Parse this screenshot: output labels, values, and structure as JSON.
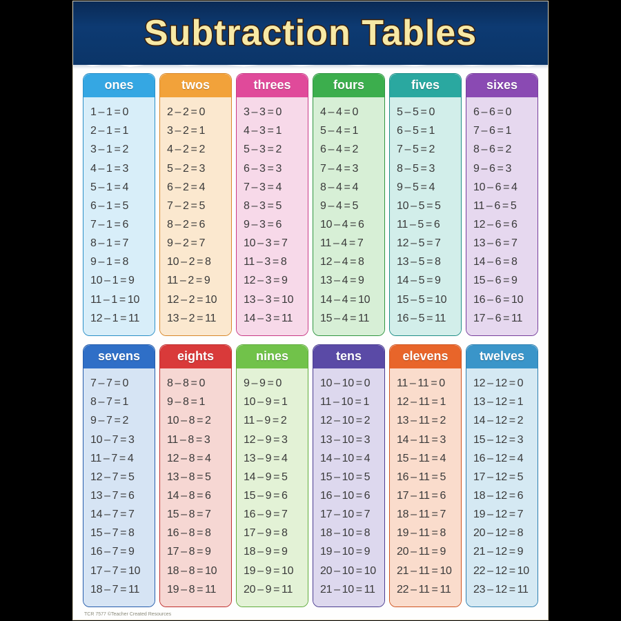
{
  "title": "Subtraction Tables",
  "footer": "TCR 7577    ©Teacher Created Resources",
  "layout": {
    "poster_width": 690,
    "poster_height": 898,
    "columns": 6,
    "rows": 2,
    "banner_height": 92,
    "title_fontsize": 52,
    "header_fontsize": 18,
    "row_fontsize": 16,
    "border_radius": 10,
    "grid_gap_h": 6,
    "grid_gap_v": 12
  },
  "colors": {
    "page_bg": "#000000",
    "poster_bg": "#fefefe",
    "banner_bg_top": "#0a2a55",
    "banner_bg_bottom": "#0b3568",
    "title_fill": "#f7e9a6",
    "title_stroke": "#3a1f0a",
    "row_text": "#3a3a3a"
  },
  "tables": [
    {
      "id": "ones",
      "label": "ones",
      "header_bg": "#35a7e3",
      "body_bg": "#d8eef9",
      "border": "#2a8fc7",
      "start": 1,
      "sub": 1
    },
    {
      "id": "twos",
      "label": "twos",
      "header_bg": "#f2a23a",
      "body_bg": "#fbe8cf",
      "border": "#d8882a",
      "start": 2,
      "sub": 2
    },
    {
      "id": "threes",
      "label": "threes",
      "header_bg": "#e04a9a",
      "body_bg": "#f7d9e9",
      "border": "#c83a86",
      "start": 3,
      "sub": 3
    },
    {
      "id": "fours",
      "label": "fours",
      "header_bg": "#3cae4d",
      "body_bg": "#d7efd6",
      "border": "#2f9540",
      "start": 4,
      "sub": 4
    },
    {
      "id": "fives",
      "label": "fives",
      "header_bg": "#2aa8a0",
      "body_bg": "#d2eeea",
      "border": "#1f8e86",
      "start": 5,
      "sub": 5
    },
    {
      "id": "sixes",
      "label": "sixes",
      "header_bg": "#8a4ab3",
      "body_bg": "#e6d8ef",
      "border": "#763d9c",
      "start": 6,
      "sub": 6
    },
    {
      "id": "sevens",
      "label": "sevens",
      "header_bg": "#2f6fc7",
      "body_bg": "#d6e4f4",
      "border": "#245cab",
      "start": 7,
      "sub": 7
    },
    {
      "id": "eights",
      "label": "eights",
      "header_bg": "#d93a3a",
      "body_bg": "#f6d7d3",
      "border": "#bf2e2e",
      "start": 8,
      "sub": 8
    },
    {
      "id": "nines",
      "label": "nines",
      "header_bg": "#71c24a",
      "body_bg": "#e3f2d6",
      "border": "#5fab3b",
      "start": 9,
      "sub": 9
    },
    {
      "id": "tens",
      "label": "tens",
      "header_bg": "#5a4aa6",
      "body_bg": "#ddd8ee",
      "border": "#4a3c90",
      "start": 10,
      "sub": 10
    },
    {
      "id": "elevens",
      "label": "elevens",
      "header_bg": "#e8652a",
      "body_bg": "#fadccc",
      "border": "#cf5420",
      "start": 11,
      "sub": 11
    },
    {
      "id": "twelves",
      "label": "twelves",
      "header_bg": "#3a95c9",
      "body_bg": "#d5e9f3",
      "border": "#2d7fb0",
      "start": 12,
      "sub": 12
    }
  ],
  "rows_per_table": 12
}
